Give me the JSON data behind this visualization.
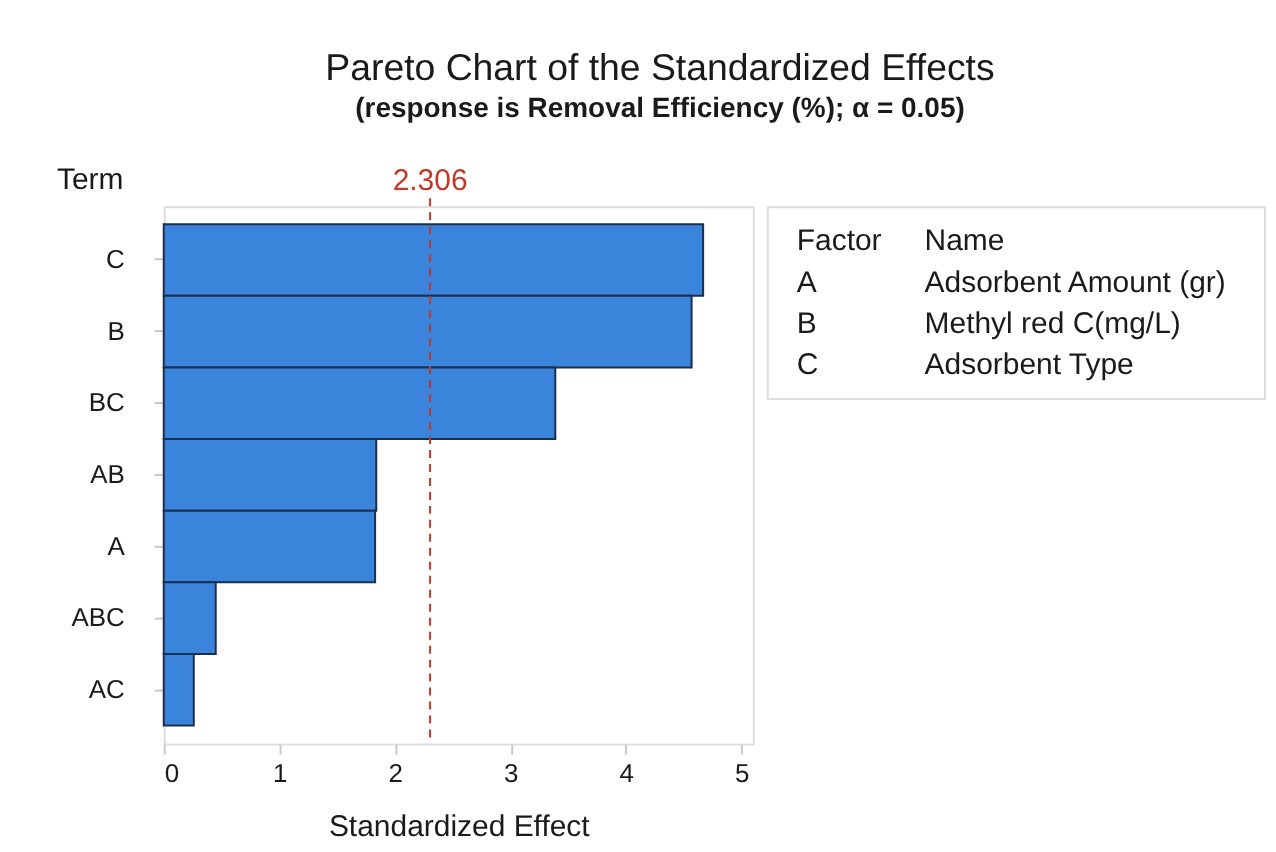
{
  "chart_data": [
    {
      "type": "bar",
      "orientation": "horizontal",
      "title": "Pareto Chart of the Standardized Effects",
      "subtitle": "(response is Removal Efficiency (%); α = 0.05)",
      "ylabel": "Term",
      "xlabel": "Standardized Effect",
      "categories": [
        "C",
        "B",
        "BC",
        "AB",
        "A",
        "ABC",
        "AC"
      ],
      "values": [
        4.67,
        4.57,
        3.39,
        1.84,
        1.83,
        0.45,
        0.26
      ],
      "color": "#3a84dc",
      "xlim": [
        0,
        5.1
      ],
      "xticks": [
        0,
        1,
        2,
        3,
        4,
        5
      ],
      "grid": false,
      "ref_lines": [
        {
          "axis": "x",
          "value": 2.306,
          "label": "2.306",
          "color": "#c0392b",
          "line_style": "dashed"
        }
      ]
    },
    {
      "type": "other",
      "annotations": [
        "Factor",
        "Name",
        "A",
        "Adsorbent Amount (gr)",
        "B",
        "Methyl red C(mg/L)",
        "C",
        "Adsorbent Type"
      ]
    }
  ]
}
